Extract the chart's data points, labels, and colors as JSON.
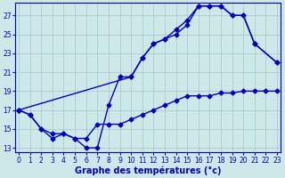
{
  "xlabel": "Graphe des températures (°c)",
  "bg_color": "#cce8e8",
  "line_color": "#0000bb",
  "grid_color": "#aacccc",
  "xlim": [
    -0.3,
    23.3
  ],
  "ylim": [
    12.5,
    28.3
  ],
  "yticks": [
    13,
    15,
    17,
    19,
    21,
    23,
    25,
    27
  ],
  "xticks": [
    0,
    1,
    2,
    3,
    4,
    5,
    6,
    7,
    8,
    9,
    10,
    11,
    12,
    13,
    14,
    15,
    16,
    17,
    18,
    19,
    20,
    21,
    22,
    23
  ],
  "line_a_x": [
    0,
    1,
    2,
    3,
    4,
    5,
    6,
    7,
    8,
    9,
    10,
    11,
    12,
    13,
    14,
    15,
    16,
    17,
    18,
    19,
    20,
    21,
    22,
    23
  ],
  "line_a_y": [
    17.0,
    16.5,
    15.0,
    14.5,
    14.5,
    14.0,
    14.0,
    15.5,
    15.5,
    15.5,
    16.0,
    16.5,
    17.0,
    17.5,
    18.0,
    18.5,
    18.5,
    18.5,
    18.8,
    18.8,
    19.0,
    19.0,
    19.0,
    19.0
  ],
  "line_b_x": [
    0,
    1,
    2,
    3,
    4,
    5,
    6,
    7,
    8,
    9,
    10,
    11,
    12,
    13,
    14,
    15,
    16,
    17,
    18,
    19,
    20,
    21,
    23
  ],
  "line_b_y": [
    17.0,
    16.5,
    15.0,
    14.0,
    14.5,
    14.0,
    13.0,
    13.0,
    17.5,
    20.5,
    20.5,
    22.5,
    24.0,
    24.5,
    25.0,
    26.0,
    28.0,
    28.0,
    28.0,
    27.0,
    27.0,
    24.0,
    22.0
  ],
  "line_c_x": [
    0,
    10,
    11,
    12,
    13,
    14,
    15,
    16,
    17,
    18,
    19,
    20,
    21,
    23
  ],
  "line_c_y": [
    17.0,
    20.5,
    22.5,
    24.0,
    24.5,
    25.5,
    26.5,
    28.0,
    28.0,
    28.0,
    27.0,
    27.0,
    24.0,
    22.0
  ],
  "marker_size": 2.5,
  "line_width": 1.0,
  "xlabel_fontsize": 7,
  "tick_fontsize": 5.5
}
